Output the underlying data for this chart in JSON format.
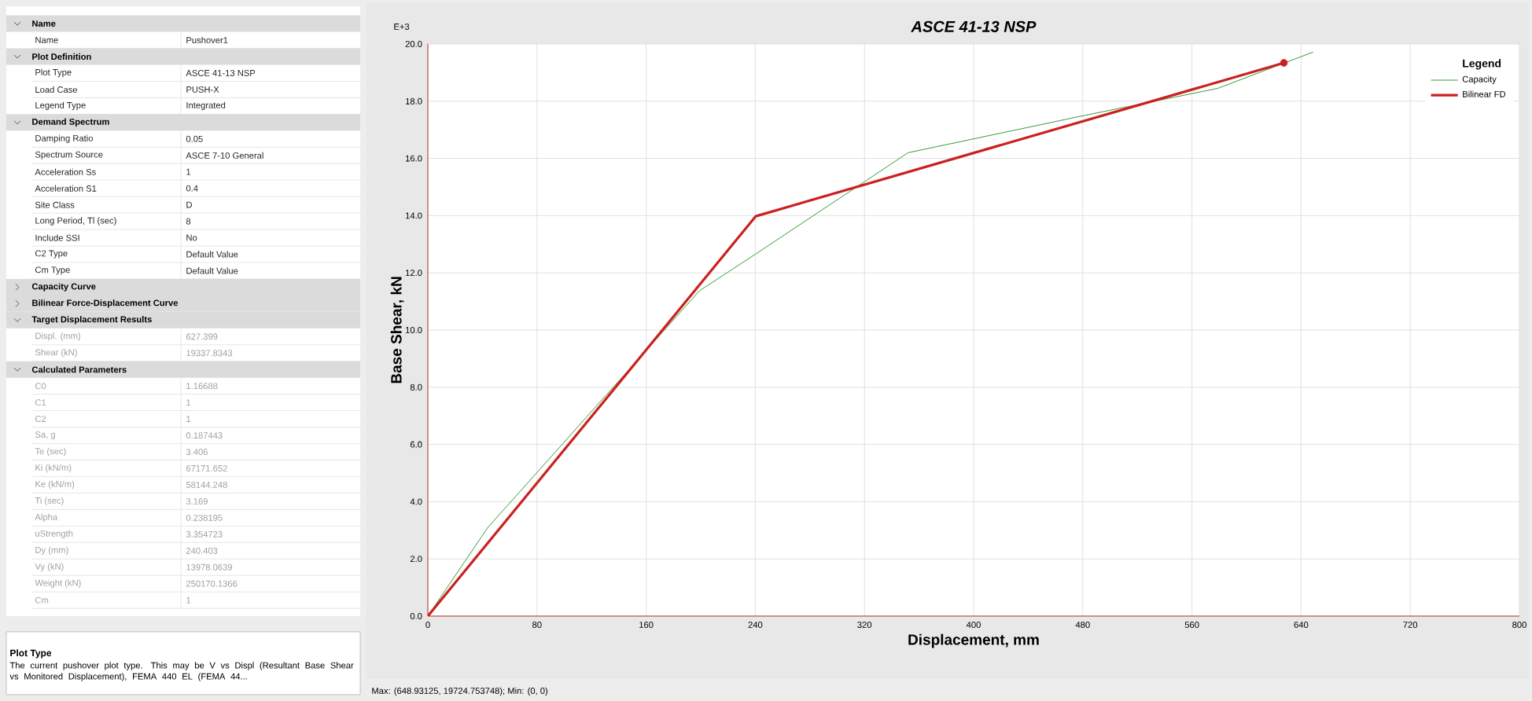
{
  "chart_data": {
    "type": "line",
    "title": "ASCE 41-13 NSP",
    "xlabel": "Displacement, mm",
    "ylabel": "Base Shear, kN",
    "legend_title": "Legend",
    "xlim": [
      0,
      800
    ],
    "xticks": [
      0,
      80,
      160,
      240,
      320,
      400,
      480,
      560,
      640,
      720,
      800
    ],
    "ylim": [
      0,
      20
    ],
    "yticks": [
      {
        "value": 0,
        "label": "0.0"
      },
      {
        "value": 2,
        "label": "2.0"
      },
      {
        "value": 4,
        "label": "4.0"
      },
      {
        "value": 6,
        "label": "6.0"
      },
      {
        "value": 8,
        "label": "8.0"
      },
      {
        "value": 10,
        "label": "10.0"
      },
      {
        "value": 12,
        "label": "12.0"
      },
      {
        "value": 14,
        "label": "14.0"
      },
      {
        "value": 16,
        "label": "16.0"
      },
      {
        "value": 18,
        "label": "18.0"
      },
      {
        "value": 20,
        "label": "20.0"
      }
    ],
    "grid": true,
    "legend": "top right",
    "series": [
      {
        "name": "Capacity",
        "color": "#3a9a3a",
        "x": [
          0,
          44,
          199,
          240,
          352,
          481,
          579,
          648.9
        ],
        "values": [
          0,
          3.1,
          11.37,
          12.65,
          16.2,
          17.5,
          18.45,
          19.72
        ]
      },
      {
        "name": "Bilinear FD",
        "color": "#cc2020",
        "x": [
          0,
          240.4,
          627.4
        ],
        "values": [
          0,
          13.98,
          19.34
        ]
      },
      {
        "type": "scatter",
        "color": "#cc2020",
        "x": [
          627.4
        ],
        "values": [
          19.34
        ]
      }
    ],
    "annotations": [
      "E+3",
      "Max: (648.93125, 19724.753748);  Min: (0, 0)",
      "Name",
      "Name",
      "Pushover1",
      "Plot Definition",
      "Plot Type",
      "ASCE 41-13 NSP",
      "Load Case",
      "PUSH-X",
      "Legend Type",
      "Integrated",
      "Demand Spectrum",
      "Damping Ratio",
      "0.05",
      "Spectrum Source",
      "ASCE 7-10 General",
      "Acceleration Ss",
      "1",
      "Acceleration S1",
      "0.4",
      "Site Class",
      "D",
      "Long Period, Tl (sec)",
      "8",
      "Include SSI",
      "No",
      "C2 Type",
      "Default Value",
      "Cm Type",
      "Default Value",
      "Capacity Curve",
      "Bilinear Force-Displacement Curve",
      "Target Displacement Results",
      "Displ. (mm)",
      "627.399",
      "Shear (kN)",
      "19337.8343",
      "Calculated Parameters",
      "C0",
      "1.16688",
      "C1",
      "1",
      "C2",
      "1",
      "Sa, g",
      "0.187443",
      "Te (sec)",
      "3.406",
      "Ki (kN/m)",
      "67171.652",
      "Ke (kN/m)",
      "58144.248",
      "Ti (sec)",
      "3.169",
      "Alpha",
      "0.238195",
      "uStrength",
      "3.354723",
      "Dy (mm)",
      "240.403",
      "Vy (kN)",
      "13978.0639",
      "Weight (kN)",
      "250170.1366",
      "Cm",
      "1",
      "Plot Type",
      "The current pushover plot type.  This may be V vs Displ (Resultant Base Shear vs Monitored Displacement), FEMA 440 EL (FEMA 44..."
    ]
  }
}
